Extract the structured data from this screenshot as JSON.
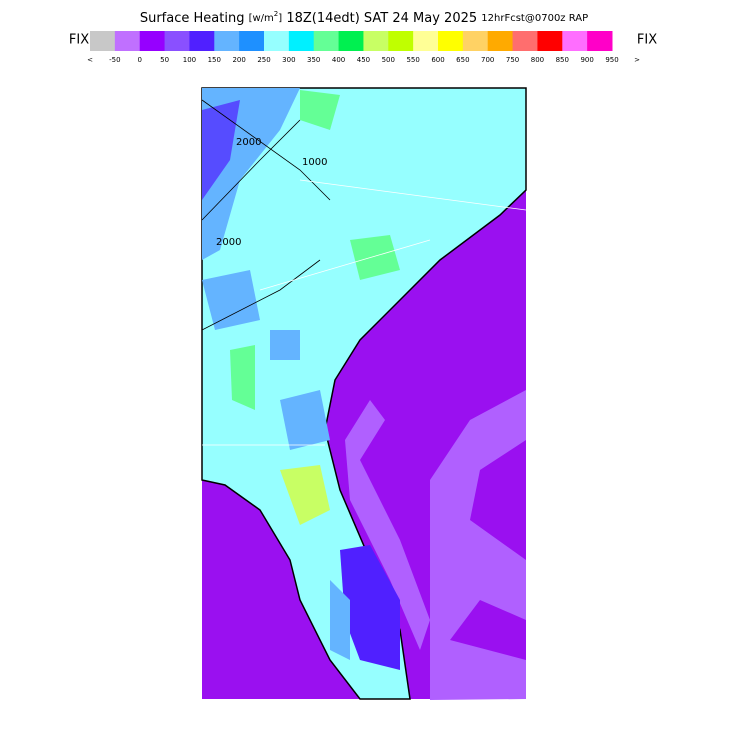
{
  "header": {
    "title_main": "Surface Heating",
    "title_unit_open": "[w/m",
    "title_unit_sup": "2",
    "title_unit_close": "]",
    "title_time": "18Z(14edt) SAT 24 May 2025",
    "title_model": "12hrFcst@0700z RAP"
  },
  "colorbar": {
    "left_label": "FIX",
    "right_label": "FIX",
    "colors": [
      "#c8c8c8",
      "#c070ff",
      "#9600ff",
      "#8a50ff",
      "#5020ff",
      "#64b4ff",
      "#1e90ff",
      "#96ffff",
      "#00f0ff",
      "#64ff96",
      "#00f050",
      "#c8ff64",
      "#c0ff00",
      "#ffff96",
      "#ffff00",
      "#ffd264",
      "#ffaa00",
      "#ff6e6e",
      "#ff0000",
      "#ff6eff",
      "#ff00c8"
    ],
    "labels": [
      "<",
      "-50",
      "0",
      "50",
      "100",
      "150",
      "200",
      "250",
      "300",
      "350",
      "400",
      "450",
      "500",
      "550",
      "600",
      "650",
      "700",
      "750",
      "800",
      "850",
      "900",
      "950",
      ">"
    ]
  },
  "map": {
    "contour_labels": [
      "2000",
      "1000",
      "2000"
    ]
  }
}
